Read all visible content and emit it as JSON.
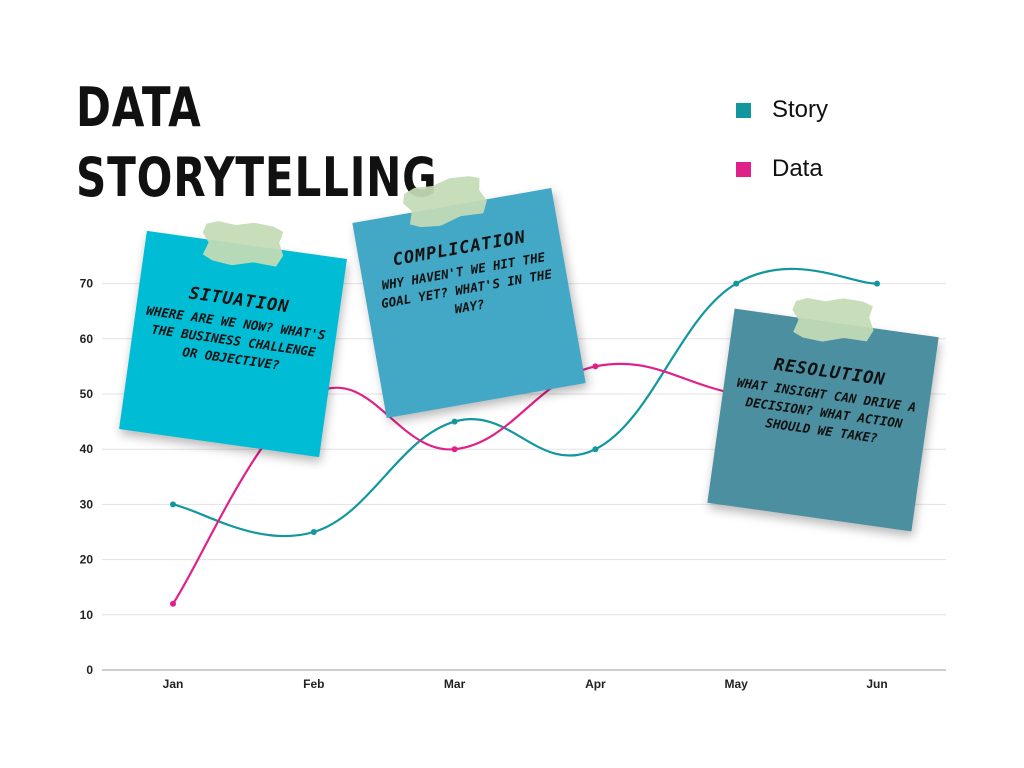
{
  "title": {
    "line1": "DATA",
    "line2": "STORYTELLING"
  },
  "legend": [
    {
      "label": "Story",
      "color": "#12979f"
    },
    {
      "label": "Data",
      "color": "#e0218a"
    }
  ],
  "chart_data": {
    "type": "line",
    "categories": [
      "Jan",
      "Feb",
      "Mar",
      "Apr",
      "May",
      "Jun"
    ],
    "series": [
      {
        "name": "Story",
        "color": "#12979f",
        "values": [
          30,
          25,
          45,
          40,
          70,
          70
        ]
      },
      {
        "name": "Data",
        "color": "#e0218a",
        "values": [
          12,
          50,
          40,
          55,
          50,
          45
        ]
      }
    ],
    "yticks": [
      0,
      10,
      20,
      30,
      40,
      50,
      60,
      70
    ],
    "ylim": [
      0,
      80
    ],
    "grid": true,
    "legend_position": "top-right",
    "smooth": true
  },
  "notes": {
    "situation": {
      "title": "Situation",
      "body": "Where are we now? What's the business challenge or objective?",
      "color": "#00bcd4"
    },
    "complication": {
      "title": "Complication",
      "body": "Why haven't we hit the goal yet? What's in the way?",
      "color": "#43a7c6"
    },
    "resolution": {
      "title": "Resolution",
      "body": "What insight can drive a decision? What action should we take?",
      "color": "#4b8fa0"
    }
  }
}
